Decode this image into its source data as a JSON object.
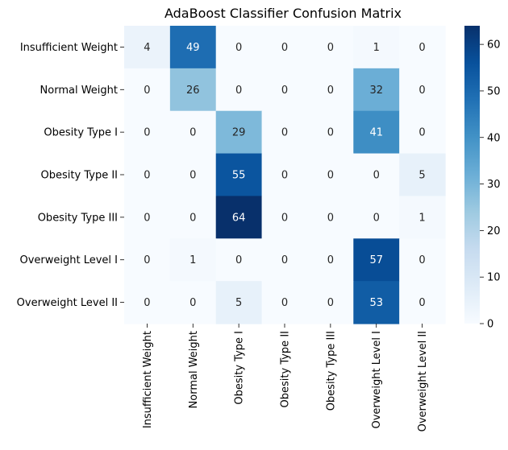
{
  "chart_data": {
    "type": "heatmap",
    "title": "AdaBoost Classifier Confusion Matrix",
    "xlabel": "",
    "ylabel": "",
    "x_categories": [
      "Insufficient Weight",
      "Normal Weight",
      "Obesity Type I",
      "Obesity Type II",
      "Obesity Type III",
      "Overweight Level I",
      "Overweight Level II"
    ],
    "y_categories": [
      "Insufficient Weight",
      "Normal Weight",
      "Obesity Type I",
      "Obesity Type II",
      "Obesity Type III",
      "Overweight Level I",
      "Overweight Level II"
    ],
    "values": [
      [
        4,
        49,
        0,
        0,
        0,
        1,
        0
      ],
      [
        0,
        26,
        0,
        0,
        0,
        32,
        0
      ],
      [
        0,
        0,
        29,
        0,
        0,
        41,
        0
      ],
      [
        0,
        0,
        55,
        0,
        0,
        0,
        5
      ],
      [
        0,
        0,
        64,
        0,
        0,
        0,
        1
      ],
      [
        0,
        1,
        0,
        0,
        0,
        57,
        0
      ],
      [
        0,
        0,
        5,
        0,
        0,
        53,
        0
      ]
    ],
    "colormap": "Blues",
    "value_range": [
      0,
      64
    ],
    "colorbar_ticks": [
      0,
      10,
      20,
      30,
      40,
      50,
      60
    ],
    "annotations": true,
    "grid": false
  }
}
